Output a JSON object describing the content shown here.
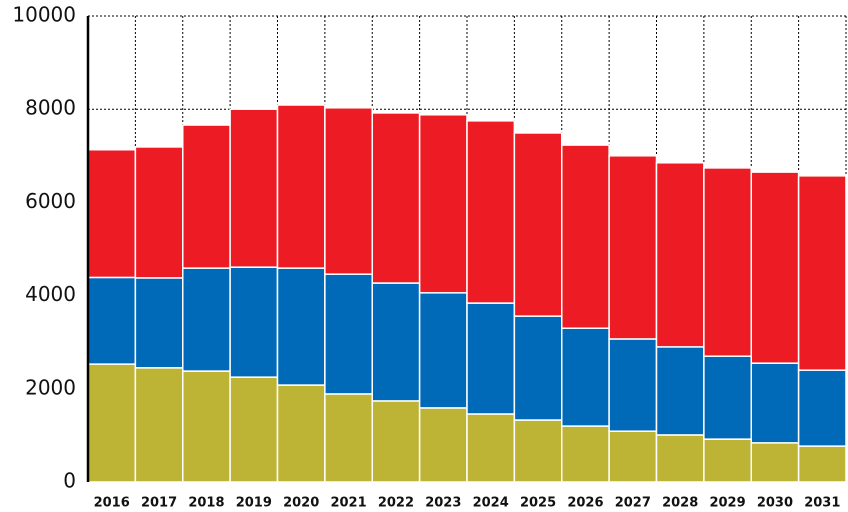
{
  "chart_data": {
    "type": "stacked_bar",
    "categories": [
      "2016",
      "2017",
      "2018",
      "2019",
      "2020",
      "2021",
      "2022",
      "2023",
      "2024",
      "2025",
      "2026",
      "2027",
      "2028",
      "2029",
      "2030",
      "2031"
    ],
    "series": [
      {
        "color": "#bdb335",
        "values": [
          2530,
          2450,
          2380,
          2250,
          2080,
          1890,
          1740,
          1590,
          1460,
          1330,
          1200,
          1090,
          1010,
          920,
          840,
          770
        ]
      },
      {
        "color": "#006ab8",
        "values": [
          1860,
          1930,
          2210,
          2360,
          2510,
          2570,
          2530,
          2470,
          2380,
          2230,
          2100,
          1980,
          1890,
          1780,
          1710,
          1630
        ]
      },
      {
        "color": "#ed1c24",
        "values": [
          2740,
          2810,
          3070,
          3390,
          3500,
          3570,
          3650,
          3820,
          3910,
          3930,
          3930,
          3930,
          3950,
          4040,
          4100,
          4170
        ]
      }
    ],
    "ylim": [
      0,
      10000
    ],
    "yticks": [
      0,
      2000,
      4000,
      6000,
      8000,
      10000
    ],
    "grid": true
  }
}
